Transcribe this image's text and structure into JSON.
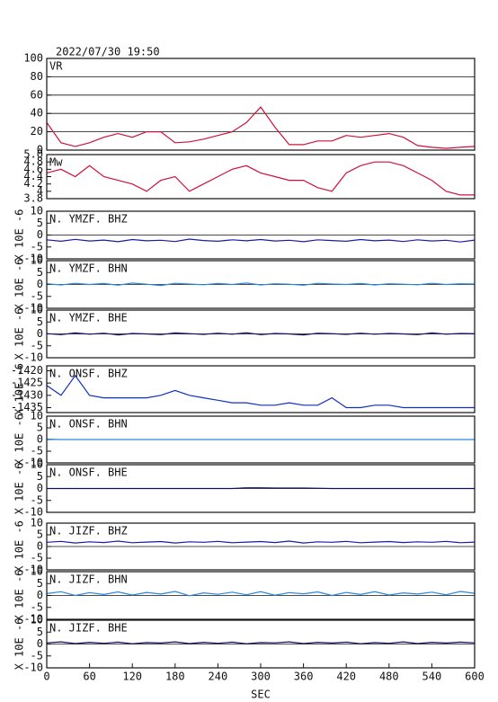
{
  "chart_data": [
    {
      "type": "line",
      "title": "2022/07/30 19:50",
      "label": "VR",
      "color": "#d0103a",
      "xlim": [
        0,
        600
      ],
      "ylim": [
        0,
        100
      ],
      "yticks": [
        0,
        20,
        40,
        60,
        80,
        100
      ],
      "grid": true,
      "x": [
        0,
        20,
        40,
        60,
        80,
        100,
        120,
        140,
        160,
        180,
        200,
        220,
        240,
        260,
        280,
        300,
        320,
        340,
        360,
        380,
        400,
        420,
        440,
        460,
        480,
        500,
        520,
        540,
        560,
        580,
        600
      ],
      "values": [
        30,
        8,
        4,
        8,
        14,
        18,
        14,
        20,
        20,
        8,
        9,
        12,
        16,
        20,
        30,
        47,
        25,
        6,
        6,
        10,
        10,
        16,
        14,
        16,
        18,
        14,
        5,
        3,
        2,
        3,
        4
      ]
    },
    {
      "type": "line",
      "label": "Mw",
      "color": "#d0103a",
      "xlim": [
        0,
        600
      ],
      "ylim": [
        3.8,
        5.0
      ],
      "yticks": [
        3.8,
        4.0,
        4.2,
        4.4,
        4.6,
        4.8,
        {
          "value": 5.0,
          "label": "5.0"
        }
      ],
      "x": [
        0,
        20,
        40,
        60,
        80,
        100,
        120,
        140,
        160,
        180,
        200,
        220,
        240,
        260,
        280,
        300,
        320,
        340,
        360,
        380,
        400,
        420,
        440,
        460,
        480,
        500,
        520,
        540,
        560,
        580,
        600
      ],
      "values": [
        4.5,
        4.6,
        4.4,
        4.7,
        4.4,
        4.3,
        4.2,
        4.0,
        4.3,
        4.4,
        4.0,
        4.2,
        4.4,
        4.6,
        4.7,
        4.5,
        4.4,
        4.3,
        4.3,
        4.1,
        4.0,
        4.5,
        4.7,
        4.8,
        4.8,
        4.7,
        4.5,
        4.3,
        4.0,
        3.9,
        3.9
      ]
    },
    {
      "type": "line",
      "label": "N. YMZF. BHZ",
      "ylabel": "X 10E -6",
      "color": "#1a1ab0",
      "zero_line": true,
      "xlim": [
        0,
        600
      ],
      "ylim": [
        -10,
        10
      ],
      "yticks": [
        -10,
        -5,
        0,
        5,
        10
      ],
      "x": [
        0,
        20,
        40,
        60,
        80,
        100,
        120,
        140,
        160,
        180,
        200,
        220,
        240,
        260,
        280,
        300,
        320,
        340,
        360,
        380,
        400,
        420,
        440,
        460,
        480,
        500,
        520,
        540,
        560,
        580,
        600
      ],
      "values": [
        -2,
        -2.6,
        -1.8,
        -2.5,
        -2.1,
        -2.8,
        -1.9,
        -2.4,
        -2.2,
        -2.7,
        -1.7,
        -2.3,
        -2.6,
        -2,
        -2.4,
        -1.9,
        -2.5,
        -2.2,
        -2.8,
        -2,
        -2.3,
        -2.6,
        -1.9,
        -2.4,
        -2.1,
        -2.7,
        -2,
        -2.5,
        -2.2,
        -2.9,
        -2.1
      ]
    },
    {
      "type": "line",
      "label": "N. YMZF. BHN",
      "ylabel": "X 10E -6",
      "color": "#2a86e0",
      "zero_line": true,
      "xlim": [
        0,
        600
      ],
      "ylim": [
        -10,
        10
      ],
      "yticks": [
        -10,
        -5,
        0,
        5,
        10
      ],
      "x": [
        0,
        20,
        40,
        60,
        80,
        100,
        120,
        140,
        160,
        180,
        200,
        220,
        240,
        260,
        280,
        300,
        320,
        340,
        360,
        380,
        400,
        420,
        440,
        460,
        480,
        500,
        520,
        540,
        560,
        580,
        600
      ],
      "values": [
        0.3,
        -0.2,
        0.5,
        0,
        0.4,
        -0.3,
        0.6,
        0.1,
        -0.4,
        0.5,
        0.2,
        -0.1,
        0.4,
        0,
        0.6,
        -0.2,
        0.3,
        0.1,
        -0.3,
        0.5,
        0.2,
        0,
        0.4,
        -0.2,
        0.3,
        0.1,
        -0.1,
        0.5,
        0,
        0.3,
        0.2
      ]
    },
    {
      "type": "line",
      "label": "N. YMZF. BHE",
      "ylabel": "X 10E -6",
      "color": "#101060",
      "zero_line": true,
      "xlim": [
        0,
        600
      ],
      "ylim": [
        -10,
        10
      ],
      "yticks": [
        -10,
        -5,
        0,
        5,
        10
      ],
      "x": [
        0,
        20,
        40,
        60,
        80,
        100,
        120,
        140,
        160,
        180,
        200,
        220,
        240,
        260,
        280,
        300,
        320,
        340,
        360,
        380,
        400,
        420,
        440,
        460,
        480,
        500,
        520,
        540,
        560,
        580,
        600
      ],
      "values": [
        0.1,
        -0.3,
        0.4,
        -0.1,
        0.3,
        -0.4,
        0.2,
        0,
        -0.3,
        0.4,
        0.1,
        -0.2,
        0.3,
        -0.1,
        0.5,
        -0.3,
        0.2,
        0,
        -0.4,
        0.3,
        0.1,
        -0.2,
        0.3,
        -0.1,
        0.2,
        0,
        -0.3,
        0.4,
        -0.1,
        0.2,
        0.1
      ]
    },
    {
      "type": "line",
      "label": "N. ONSF. BHZ",
      "ylabel": "X 10E -6",
      "color": "#1030c0",
      "xlim": [
        0,
        600
      ],
      "ylim": [
        -1437,
        -1418
      ],
      "yticks": [
        -1435,
        -1430,
        -1425,
        -1420
      ],
      "x": [
        0,
        20,
        40,
        60,
        80,
        100,
        120,
        140,
        160,
        180,
        200,
        220,
        240,
        260,
        280,
        300,
        320,
        340,
        360,
        380,
        400,
        420,
        440,
        460,
        480,
        500,
        520,
        540,
        560,
        580,
        600
      ],
      "values": [
        -1426,
        -1430,
        -1422,
        -1430,
        -1431,
        -1431,
        -1431,
        -1431,
        -1430,
        -1428,
        -1430,
        -1431,
        -1432,
        -1433,
        -1433,
        -1434,
        -1434,
        -1433,
        -1434,
        -1434,
        -1431,
        -1435,
        -1435,
        -1434,
        -1434,
        -1435,
        -1435,
        -1435,
        -1435,
        -1435,
        -1435
      ]
    },
    {
      "type": "line",
      "label": "N. ONSF. BHN",
      "ylabel": "X 10E -6",
      "color": "#2a86e0",
      "zero_line": true,
      "xlim": [
        0,
        600
      ],
      "ylim": [
        -10,
        10
      ],
      "yticks": [
        -10,
        -5,
        0,
        5,
        10
      ],
      "x": [
        0,
        20,
        40,
        60,
        80,
        100,
        120,
        140,
        160,
        180,
        200,
        220,
        240,
        260,
        280,
        300,
        320,
        340,
        360,
        380,
        400,
        420,
        440,
        460,
        480,
        500,
        520,
        540,
        560,
        580,
        600
      ],
      "values": [
        0.2,
        0,
        0,
        0,
        0,
        0,
        0,
        0,
        0,
        0,
        0,
        0,
        0,
        0,
        0,
        0,
        0,
        0,
        0,
        0,
        0,
        0,
        0,
        0,
        0,
        0,
        0,
        0,
        0,
        0,
        0
      ]
    },
    {
      "type": "line",
      "label": "N. ONSF. BHE",
      "ylabel": "X 10E -6",
      "color": "#101060",
      "zero_line": true,
      "xlim": [
        0,
        600
      ],
      "ylim": [
        -10,
        10
      ],
      "yticks": [
        -10,
        -5,
        0,
        5,
        10
      ],
      "x": [
        0,
        20,
        40,
        60,
        80,
        100,
        120,
        140,
        160,
        180,
        200,
        220,
        240,
        260,
        280,
        300,
        320,
        340,
        360,
        380,
        400,
        420,
        440,
        460,
        480,
        500,
        520,
        540,
        560,
        580,
        600
      ],
      "values": [
        0,
        0,
        0,
        0,
        0,
        0,
        0,
        0,
        0,
        0,
        0,
        0,
        0,
        0,
        0.3,
        0.3,
        0.2,
        0.2,
        0.2,
        0.1,
        0,
        0,
        0,
        0,
        0,
        0,
        0,
        0,
        0,
        0,
        0
      ]
    },
    {
      "type": "line",
      "label": "N. JIZF. BHZ",
      "ylabel": "X 10E -6",
      "color": "#1a1ab0",
      "zero_line": true,
      "xlim": [
        0,
        600
      ],
      "ylim": [
        -10,
        10
      ],
      "yticks": [
        -10,
        -5,
        0,
        5,
        10
      ],
      "x": [
        0,
        20,
        40,
        60,
        80,
        100,
        120,
        140,
        160,
        180,
        200,
        220,
        240,
        260,
        280,
        300,
        320,
        340,
        360,
        380,
        400,
        420,
        440,
        460,
        480,
        500,
        520,
        540,
        560,
        580,
        600
      ],
      "values": [
        1.8,
        2.2,
        1.5,
        2,
        1.7,
        2.3,
        1.6,
        1.9,
        2.1,
        1.5,
        2,
        1.8,
        2.2,
        1.6,
        1.9,
        2.1,
        1.7,
        2.3,
        1.5,
        2,
        1.8,
        2.2,
        1.6,
        1.9,
        2.1,
        1.7,
        2,
        1.8,
        2.2,
        1.6,
        1.9
      ]
    },
    {
      "type": "line",
      "label": "N. JIZF. BHN",
      "ylabel": "X 10E -6",
      "color": "#2a86e0",
      "zero_line": true,
      "xlim": [
        0,
        600
      ],
      "ylim": [
        -10,
        10
      ],
      "yticks": [
        -10,
        -5,
        0,
        5,
        10
      ],
      "x": [
        0,
        20,
        40,
        60,
        80,
        100,
        120,
        140,
        160,
        180,
        200,
        220,
        240,
        260,
        280,
        300,
        320,
        340,
        360,
        380,
        400,
        420,
        440,
        460,
        480,
        500,
        520,
        540,
        560,
        580,
        600
      ],
      "values": [
        0.8,
        1.6,
        0,
        1.2,
        0.4,
        1.5,
        0.2,
        1.3,
        0.6,
        1.7,
        -0.1,
        1.1,
        0.5,
        1.4,
        0.3,
        1.6,
        0.1,
        1.2,
        0.7,
        1.5,
        0,
        1.3,
        0.4,
        1.6,
        0.2,
        1.1,
        0.6,
        1.4,
        0.3,
        1.7,
        0.9
      ]
    },
    {
      "type": "line",
      "label": "N. JIZF. BHE",
      "ylabel": "X 10E -6",
      "color": "#101060",
      "zero_line": true,
      "xlim": [
        0,
        600
      ],
      "ylim": [
        -10,
        10
      ],
      "yticks": [
        -10,
        -5,
        0,
        5,
        10
      ],
      "xlabel": "SEC",
      "xticks": [
        0,
        60,
        120,
        180,
        240,
        300,
        360,
        420,
        480,
        540,
        600
      ],
      "x": [
        0,
        20,
        40,
        60,
        80,
        100,
        120,
        140,
        160,
        180,
        200,
        220,
        240,
        260,
        280,
        300,
        320,
        340,
        360,
        380,
        400,
        420,
        440,
        460,
        480,
        500,
        520,
        540,
        560,
        580,
        600
      ],
      "values": [
        0.5,
        0.9,
        0.2,
        0.7,
        0.3,
        0.8,
        0.1,
        0.6,
        0.4,
        0.9,
        0.2,
        0.7,
        0.3,
        0.8,
        0.1,
        0.6,
        0.5,
        0.9,
        0.2,
        0.7,
        0.4,
        0.8,
        0.1,
        0.6,
        0.3,
        0.9,
        0.2,
        0.7,
        0.4,
        0.8,
        0.5
      ]
    }
  ]
}
